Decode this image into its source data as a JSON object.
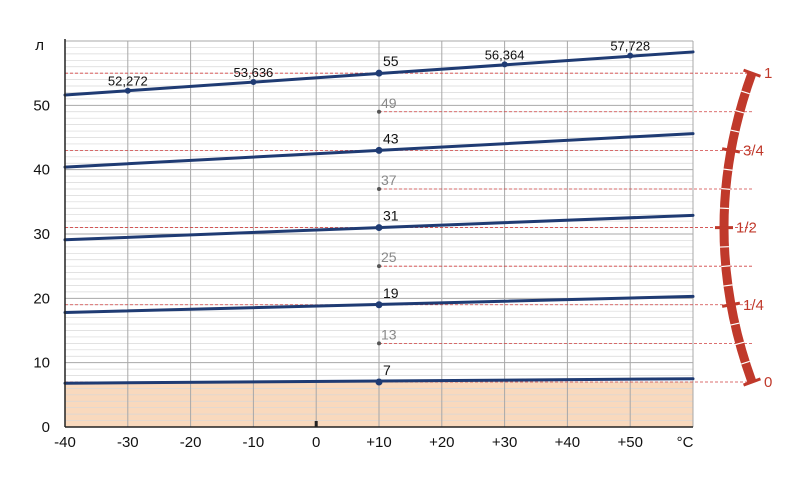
{
  "chart_data": {
    "type": "line",
    "x_axis": {
      "min": -40,
      "max": 60,
      "ticks": [
        -40,
        -30,
        -20,
        -10,
        0,
        10,
        20,
        30,
        40,
        50
      ],
      "tick_labels": [
        "-40",
        "-30",
        "-20",
        "-10",
        "0",
        "+10",
        "+20",
        "+30",
        "+40",
        "+50"
      ],
      "unit_label": "°C"
    },
    "y_axis": {
      "min": 0,
      "max": 60,
      "ticks": [
        0,
        10,
        20,
        30,
        40,
        50
      ],
      "tick_labels": [
        "0",
        "10",
        "20",
        "30",
        "40",
        "50"
      ],
      "unit_label": "л"
    },
    "reference_temperature": 10,
    "series": [
      {
        "value_at_ref": 7,
        "y_at_min": 6.8,
        "y_at_max": 7.5
      },
      {
        "value_at_ref": 19,
        "y_at_min": 17.8,
        "y_at_max": 20.3
      },
      {
        "value_at_ref": 31,
        "y_at_min": 29.1,
        "y_at_max": 32.9
      },
      {
        "value_at_ref": 43,
        "y_at_min": 40.4,
        "y_at_max": 45.6
      },
      {
        "value_at_ref": 55,
        "y_at_min": 51.6,
        "y_at_max": 58.3
      }
    ],
    "top_line_points": [
      {
        "x": -30,
        "y": 52.272,
        "label": "52,272"
      },
      {
        "x": -10,
        "y": 53.636,
        "label": "53,636"
      },
      {
        "x": 30,
        "y": 56.364,
        "label": "56,364"
      },
      {
        "x": 50,
        "y": 57.728,
        "label": "57,728"
      }
    ],
    "intermediate_marks": [
      {
        "y": 13,
        "label": "13"
      },
      {
        "y": 25,
        "label": "25"
      },
      {
        "y": 37,
        "label": "37"
      },
      {
        "y": 49,
        "label": "49"
      }
    ],
    "main_marks": [
      {
        "y": 7,
        "label": "7"
      },
      {
        "y": 19,
        "label": "19"
      },
      {
        "y": 31,
        "label": "31"
      },
      {
        "y": 43,
        "label": "43"
      },
      {
        "y": 55,
        "label": "55"
      }
    ],
    "reserve_zone": {
      "y_min": 0,
      "y_max": 7
    },
    "fuel_gauge": {
      "marks": [
        {
          "y": 7,
          "label": "0"
        },
        {
          "y": 19,
          "label": "1/4"
        },
        {
          "y": 31,
          "label": "1/2"
        },
        {
          "y": 43,
          "label": "3/4"
        },
        {
          "y": 55,
          "label": "1"
        }
      ]
    },
    "grid": true,
    "colors": {
      "line": "#1f3b73",
      "grid": "#a8a8a8",
      "minor_grid": "#d8d8d8",
      "reserve_fill": "#f9d9bd",
      "guide": "#d04040",
      "gauge": "#c0392b",
      "intermediate_text": "#888888"
    }
  }
}
